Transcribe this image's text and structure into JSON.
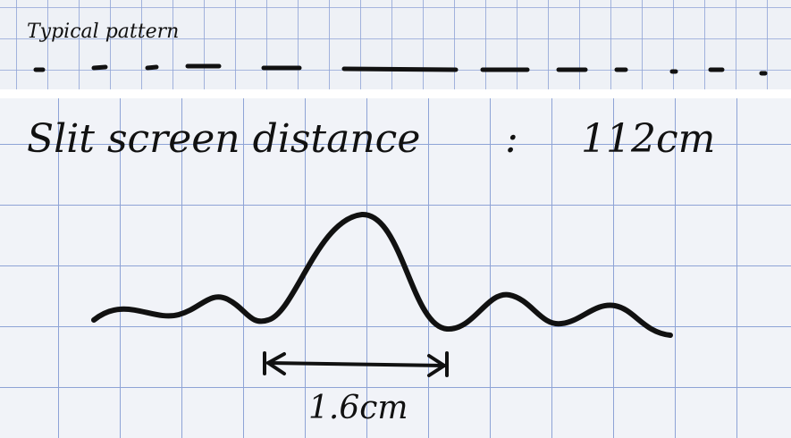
{
  "top": {
    "caption": "Typical pattern"
  },
  "main": {
    "heading": "Slit screen distance",
    "separator": ":",
    "distance": "112cm",
    "width_label": "1.6cm"
  }
}
